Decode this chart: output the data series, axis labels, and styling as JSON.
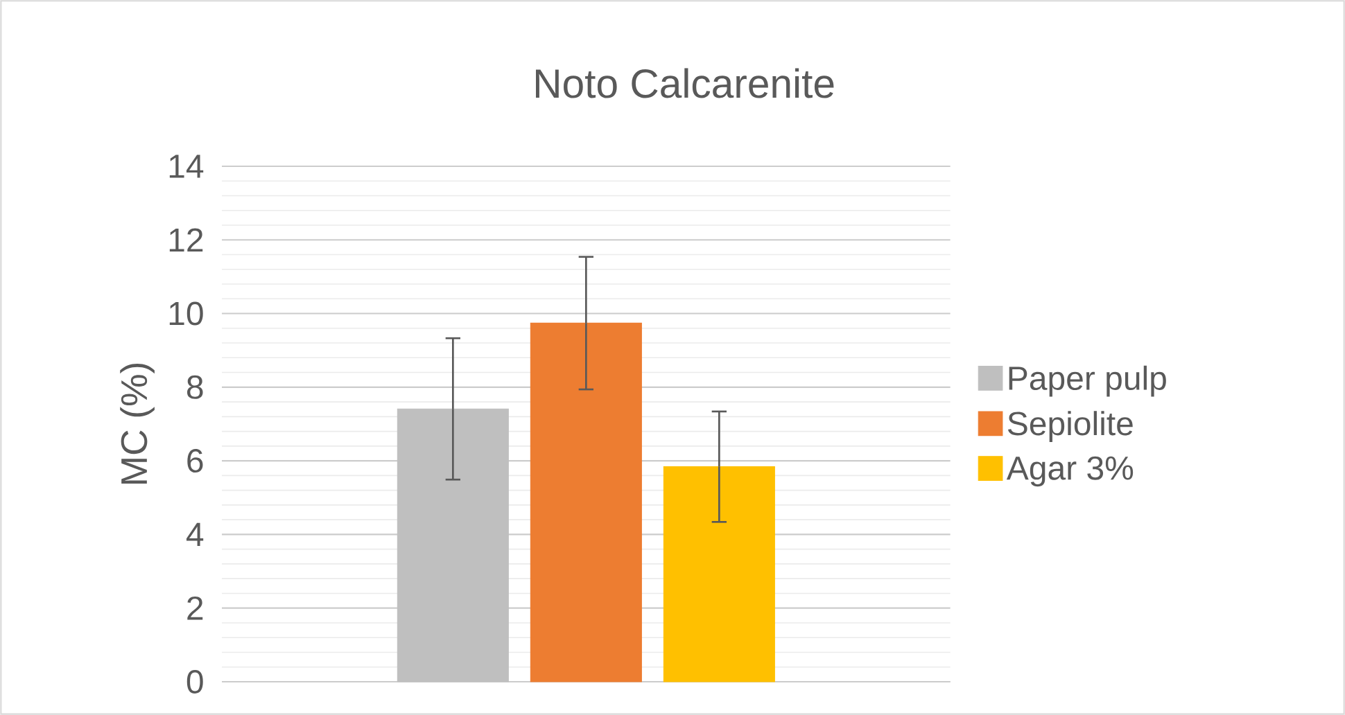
{
  "chart_data": {
    "type": "bar",
    "title": "Noto Calcarenite",
    "ylabel": "MC (%)",
    "categories": [
      null
    ],
    "series": [
      {
        "name": "Paper pulp",
        "color": "#bfbfbf",
        "values": [
          7.41
        ],
        "errors": [
          1.92
        ]
      },
      {
        "name": "Sepiolite",
        "color": "#ed7d31",
        "values": [
          9.74
        ],
        "errors": [
          1.8
        ]
      },
      {
        "name": "Agar 3%",
        "color": "#ffc000",
        "values": [
          5.84
        ],
        "errors": [
          1.5
        ]
      }
    ],
    "ylim": [
      0,
      14
    ],
    "yticks": [
      0,
      2,
      4,
      6,
      8,
      10,
      12,
      14
    ],
    "grid": "y",
    "legend": "right"
  }
}
